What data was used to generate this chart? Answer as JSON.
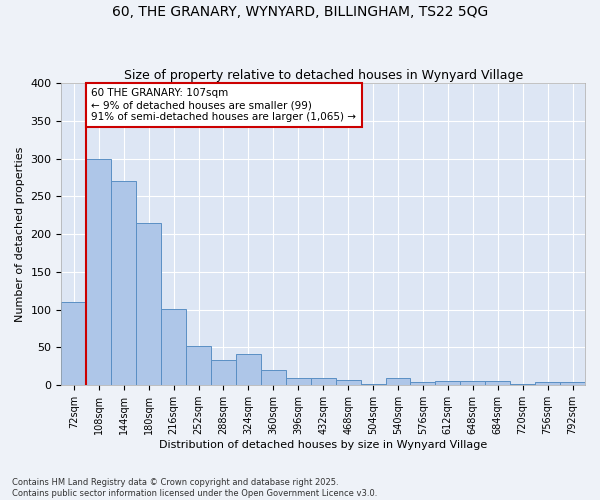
{
  "title": "60, THE GRANARY, WYNYARD, BILLINGHAM, TS22 5QG",
  "subtitle": "Size of property relative to detached houses in Wynyard Village",
  "xlabel": "Distribution of detached houses by size in Wynyard Village",
  "ylabel": "Number of detached properties",
  "footer_line1": "Contains HM Land Registry data © Crown copyright and database right 2025.",
  "footer_line2": "Contains public sector information licensed under the Open Government Licence v3.0.",
  "categories": [
    "72sqm",
    "108sqm",
    "144sqm",
    "180sqm",
    "216sqm",
    "252sqm",
    "288sqm",
    "324sqm",
    "360sqm",
    "396sqm",
    "432sqm",
    "468sqm",
    "504sqm",
    "540sqm",
    "576sqm",
    "612sqm",
    "648sqm",
    "684sqm",
    "720sqm",
    "756sqm",
    "792sqm"
  ],
  "values": [
    110,
    299,
    270,
    215,
    101,
    52,
    34,
    42,
    20,
    9,
    9,
    7,
    1,
    9,
    4,
    6,
    5,
    5,
    1,
    4,
    4
  ],
  "bar_color": "#aec6e8",
  "bar_edge_color": "#5a8fc4",
  "plot_bg_color": "#dde6f4",
  "fig_bg_color": "#eef2f8",
  "grid_color": "#ffffff",
  "annotation_text": "60 THE GRANARY: 107sqm\n← 9% of detached houses are smaller (99)\n91% of semi-detached houses are larger (1,065) →",
  "annotation_box_facecolor": "#ffffff",
  "annotation_border_color": "#cc0000",
  "red_line_x": 0.5,
  "ylim": [
    0,
    400
  ],
  "yticks": [
    0,
    50,
    100,
    150,
    200,
    250,
    300,
    350,
    400
  ],
  "title_fontsize": 10,
  "subtitle_fontsize": 9,
  "axis_label_fontsize": 8,
  "tick_fontsize": 7,
  "footer_fontsize": 6
}
